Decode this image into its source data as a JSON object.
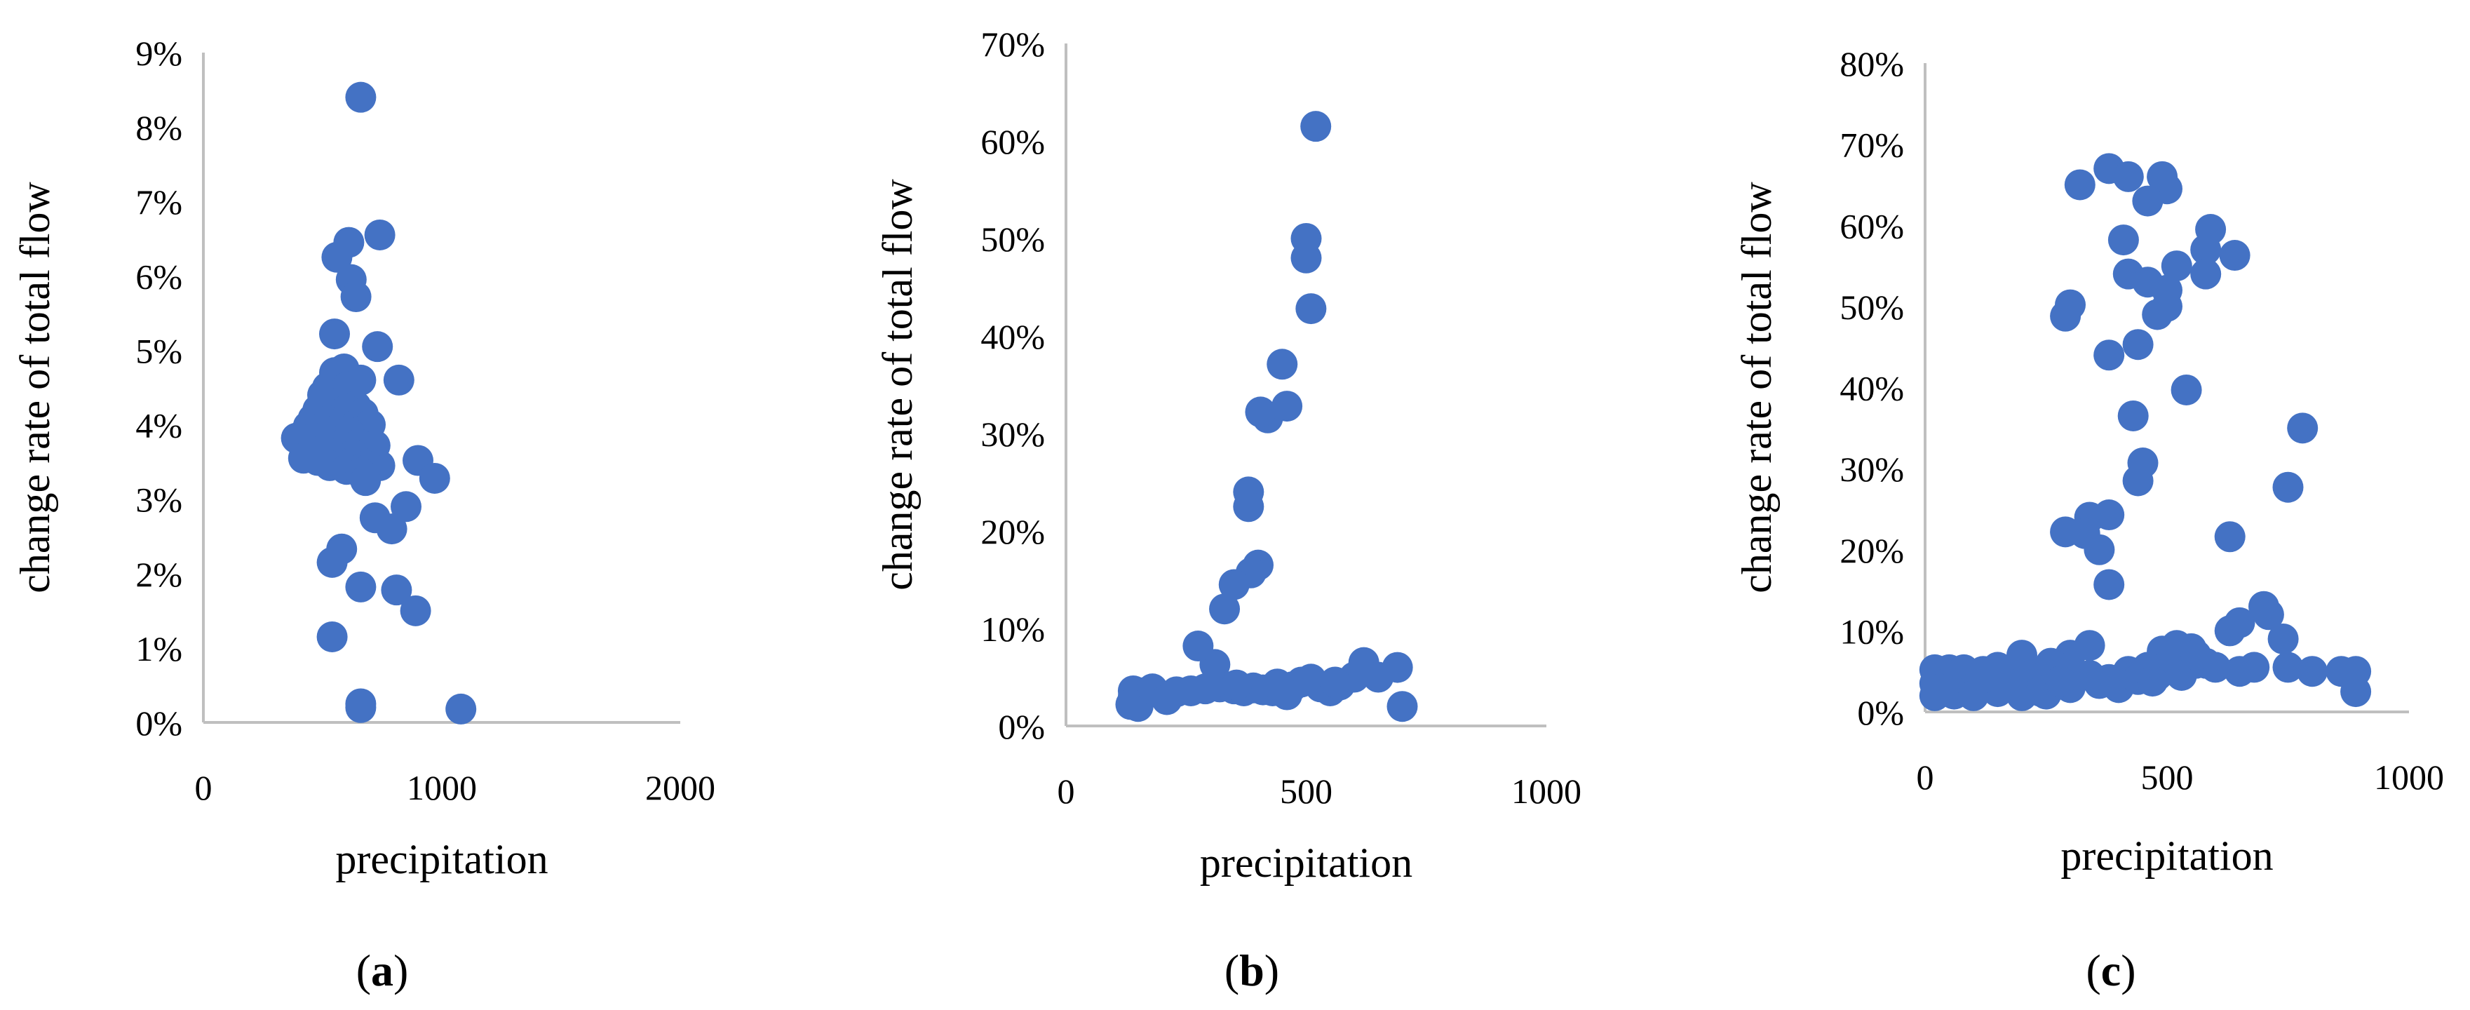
{
  "chart_data": [
    {
      "type": "scatter",
      "panel_label": "(a)",
      "panel_letter": "a",
      "xlabel": "precipitation",
      "ylabel": "change rate of total flow",
      "xlim": [
        0,
        2000
      ],
      "ylim": [
        0,
        0.09
      ],
      "x_ticks": [
        0,
        1000,
        2000
      ],
      "x_tick_labels": [
        "0",
        "1000",
        "2000"
      ],
      "y_ticks": [
        0,
        0.01,
        0.02,
        0.03,
        0.04,
        0.05,
        0.06,
        0.07,
        0.08,
        0.09
      ],
      "y_tick_labels": [
        "0%",
        "1%",
        "2%",
        "3%",
        "4%",
        "5%",
        "6%",
        "7%",
        "8%",
        "9%"
      ],
      "marker_color": "#4472C4",
      "grid": false,
      "points": [
        [
          660,
          0.084
        ],
        [
          610,
          0.0645
        ],
        [
          740,
          0.0655
        ],
        [
          560,
          0.0625
        ],
        [
          620,
          0.0595
        ],
        [
          640,
          0.0572
        ],
        [
          550,
          0.0522
        ],
        [
          730,
          0.0505
        ],
        [
          590,
          0.0475
        ],
        [
          550,
          0.047
        ],
        [
          520,
          0.045
        ],
        [
          600,
          0.045
        ],
        [
          660,
          0.046
        ],
        [
          820,
          0.046
        ],
        [
          500,
          0.044
        ],
        [
          570,
          0.043
        ],
        [
          640,
          0.0425
        ],
        [
          480,
          0.042
        ],
        [
          540,
          0.042
        ],
        [
          600,
          0.042
        ],
        [
          670,
          0.0415
        ],
        [
          460,
          0.0408
        ],
        [
          520,
          0.0405
        ],
        [
          580,
          0.0403
        ],
        [
          640,
          0.04
        ],
        [
          700,
          0.04
        ],
        [
          440,
          0.0398
        ],
        [
          490,
          0.0395
        ],
        [
          550,
          0.0392
        ],
        [
          610,
          0.039
        ],
        [
          390,
          0.0382
        ],
        [
          460,
          0.0382
        ],
        [
          530,
          0.0378
        ],
        [
          590,
          0.0375
        ],
        [
          650,
          0.0374
        ],
        [
          720,
          0.0372
        ],
        [
          440,
          0.0365
        ],
        [
          510,
          0.0362
        ],
        [
          570,
          0.0362
        ],
        [
          630,
          0.036
        ],
        [
          420,
          0.0355
        ],
        [
          480,
          0.0352
        ],
        [
          560,
          0.035
        ],
        [
          620,
          0.0348
        ],
        [
          680,
          0.0345
        ],
        [
          530,
          0.0345
        ],
        [
          740,
          0.0345
        ],
        [
          700,
          0.0342
        ],
        [
          900,
          0.0352
        ],
        [
          600,
          0.034
        ],
        [
          660,
          0.0335
        ],
        [
          970,
          0.0328
        ],
        [
          680,
          0.0325
        ],
        [
          850,
          0.029
        ],
        [
          720,
          0.0275
        ],
        [
          790,
          0.026
        ],
        [
          580,
          0.0233
        ],
        [
          540,
          0.0215
        ],
        [
          810,
          0.0178
        ],
        [
          660,
          0.0182
        ],
        [
          890,
          0.015
        ],
        [
          540,
          0.0115
        ],
        [
          660,
          0.0025
        ],
        [
          660,
          0.002
        ],
        [
          1080,
          0.0018
        ]
      ]
    },
    {
      "type": "scatter",
      "panel_label": "(b)",
      "panel_letter": "b",
      "xlabel": "precipitation",
      "ylabel": "change rate of total flow",
      "xlim": [
        0,
        1000
      ],
      "ylim": [
        0,
        0.7
      ],
      "x_ticks": [
        0,
        500,
        1000
      ],
      "x_tick_labels": [
        "0",
        "500",
        "1000"
      ],
      "y_ticks": [
        0,
        0.1,
        0.2,
        0.3,
        0.4,
        0.5,
        0.6,
        0.7
      ],
      "y_tick_labels": [
        "0%",
        "10%",
        "20%",
        "30%",
        "40%",
        "50%",
        "60%",
        "70%"
      ],
      "marker_color": "#4472C4",
      "grid": false,
      "points": [
        [
          520,
          0.615
        ],
        [
          500,
          0.5
        ],
        [
          500,
          0.48
        ],
        [
          510,
          0.428
        ],
        [
          450,
          0.371
        ],
        [
          460,
          0.328
        ],
        [
          420,
          0.316
        ],
        [
          405,
          0.322
        ],
        [
          380,
          0.24
        ],
        [
          380,
          0.225
        ],
        [
          400,
          0.165
        ],
        [
          385,
          0.157
        ],
        [
          350,
          0.145
        ],
        [
          330,
          0.12
        ],
        [
          310,
          0.063
        ],
        [
          275,
          0.082
        ],
        [
          140,
          0.036
        ],
        [
          160,
          0.034
        ],
        [
          140,
          0.03
        ],
        [
          135,
          0.022
        ],
        [
          150,
          0.02
        ],
        [
          180,
          0.038
        ],
        [
          210,
          0.027
        ],
        [
          230,
          0.035
        ],
        [
          260,
          0.036
        ],
        [
          290,
          0.038
        ],
        [
          320,
          0.04
        ],
        [
          350,
          0.038
        ],
        [
          370,
          0.036
        ],
        [
          390,
          0.039
        ],
        [
          410,
          0.037
        ],
        [
          430,
          0.036
        ],
        [
          450,
          0.035
        ],
        [
          470,
          0.04
        ],
        [
          490,
          0.045
        ],
        [
          510,
          0.048
        ],
        [
          530,
          0.04
        ],
        [
          550,
          0.036
        ],
        [
          570,
          0.042
        ],
        [
          600,
          0.05
        ],
        [
          620,
          0.065
        ],
        [
          650,
          0.05
        ],
        [
          690,
          0.06
        ],
        [
          700,
          0.02
        ],
        [
          355,
          0.042
        ],
        [
          440,
          0.043
        ],
        [
          460,
          0.032
        ],
        [
          560,
          0.045
        ]
      ]
    },
    {
      "type": "scatter",
      "panel_label": "(c)",
      "panel_letter": "c",
      "xlabel": "precipitation",
      "ylabel": "change rate of total flow",
      "xlim": [
        0,
        1000
      ],
      "ylim": [
        0,
        0.8
      ],
      "x_ticks": [
        0,
        500,
        1000
      ],
      "x_tick_labels": [
        "0",
        "500",
        "1000"
      ],
      "y_ticks": [
        0,
        0.1,
        0.2,
        0.3,
        0.4,
        0.5,
        0.6,
        0.7,
        0.8
      ],
      "y_tick_labels": [
        "0%",
        "10%",
        "20%",
        "30%",
        "40%",
        "50%",
        "60%",
        "70%",
        "80%"
      ],
      "marker_color": "#4472C4",
      "grid": false,
      "points": [
        [
          380,
          0.67
        ],
        [
          420,
          0.66
        ],
        [
          490,
          0.66
        ],
        [
          320,
          0.65
        ],
        [
          500,
          0.645
        ],
        [
          460,
          0.63
        ],
        [
          590,
          0.595
        ],
        [
          410,
          0.582
        ],
        [
          580,
          0.57
        ],
        [
          640,
          0.563
        ],
        [
          520,
          0.55
        ],
        [
          420,
          0.54
        ],
        [
          580,
          0.54
        ],
        [
          460,
          0.53
        ],
        [
          500,
          0.52
        ],
        [
          300,
          0.502
        ],
        [
          500,
          0.5
        ],
        [
          290,
          0.488
        ],
        [
          480,
          0.49
        ],
        [
          440,
          0.453
        ],
        [
          380,
          0.44
        ],
        [
          540,
          0.397
        ],
        [
          780,
          0.35
        ],
        [
          430,
          0.365
        ],
        [
          450,
          0.307
        ],
        [
          440,
          0.285
        ],
        [
          750,
          0.277
        ],
        [
          340,
          0.24
        ],
        [
          380,
          0.243
        ],
        [
          290,
          0.222
        ],
        [
          330,
          0.22
        ],
        [
          360,
          0.2
        ],
        [
          630,
          0.216
        ],
        [
          380,
          0.157
        ],
        [
          700,
          0.13
        ],
        [
          710,
          0.12
        ],
        [
          650,
          0.11
        ],
        [
          740,
          0.09
        ],
        [
          630,
          0.1
        ],
        [
          340,
          0.082
        ],
        [
          200,
          0.07
        ],
        [
          300,
          0.07
        ],
        [
          490,
          0.075
        ],
        [
          520,
          0.082
        ],
        [
          550,
          0.078
        ],
        [
          500,
          0.07
        ],
        [
          580,
          0.06
        ],
        [
          20,
          0.052
        ],
        [
          50,
          0.052
        ],
        [
          80,
          0.052
        ],
        [
          120,
          0.05
        ],
        [
          150,
          0.055
        ],
        [
          180,
          0.05
        ],
        [
          220,
          0.045
        ],
        [
          260,
          0.06
        ],
        [
          300,
          0.055
        ],
        [
          340,
          0.045
        ],
        [
          380,
          0.04
        ],
        [
          420,
          0.05
        ],
        [
          460,
          0.055
        ],
        [
          520,
          0.05
        ],
        [
          560,
          0.06
        ],
        [
          600,
          0.055
        ],
        [
          650,
          0.05
        ],
        [
          680,
          0.055
        ],
        [
          750,
          0.055
        ],
        [
          800,
          0.05
        ],
        [
          860,
          0.05
        ],
        [
          890,
          0.05
        ],
        [
          20,
          0.035
        ],
        [
          60,
          0.035
        ],
        [
          100,
          0.03
        ],
        [
          140,
          0.03
        ],
        [
          180,
          0.03
        ],
        [
          220,
          0.035
        ],
        [
          260,
          0.03
        ],
        [
          20,
          0.02
        ],
        [
          60,
          0.022
        ],
        [
          100,
          0.02
        ],
        [
          150,
          0.025
        ],
        [
          200,
          0.02
        ],
        [
          250,
          0.022
        ],
        [
          300,
          0.03
        ],
        [
          400,
          0.03
        ],
        [
          440,
          0.04
        ],
        [
          480,
          0.045
        ],
        [
          530,
          0.045
        ],
        [
          890,
          0.025
        ],
        [
          30,
          0.028
        ],
        [
          240,
          0.025
        ],
        [
          120,
          0.042
        ],
        [
          170,
          0.035
        ],
        [
          280,
          0.038
        ],
        [
          360,
          0.035
        ],
        [
          470,
          0.038
        ],
        [
          560,
          0.07
        ]
      ]
    }
  ]
}
